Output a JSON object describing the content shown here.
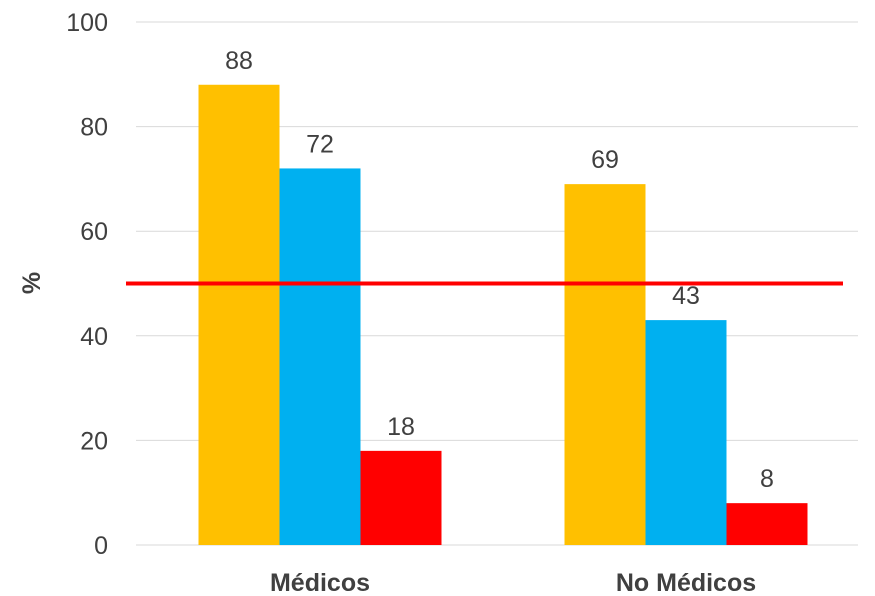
{
  "chart_data": {
    "type": "bar",
    "ylabel": "%",
    "ylim": [
      0,
      100
    ],
    "yticks": [
      "0",
      "20",
      "40",
      "60",
      "80",
      "100"
    ],
    "categories": [
      "Médicos",
      "No Médicos"
    ],
    "series": [
      {
        "values": [
          88,
          69
        ],
        "labels": [
          "88",
          "69"
        ],
        "color": "#FFC000"
      },
      {
        "values": [
          72,
          43
        ],
        "labels": [
          "72",
          "43"
        ],
        "color": "#00B0F0"
      },
      {
        "values": [
          18,
          8
        ],
        "labels": [
          "18",
          "8"
        ],
        "color": "#FF0000"
      }
    ],
    "reference_line": {
      "value": 50,
      "color": "#FF0000"
    },
    "grid": true,
    "legend": "none"
  }
}
